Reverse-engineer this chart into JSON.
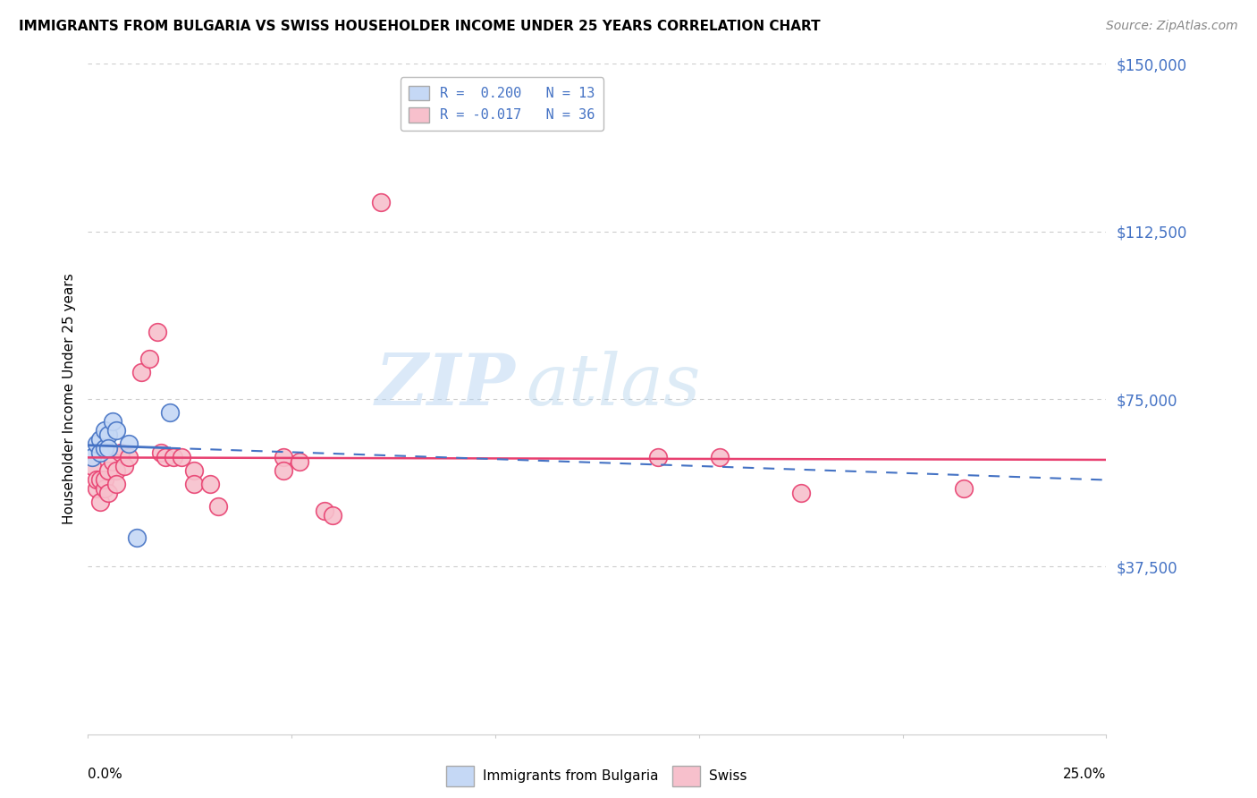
{
  "title": "IMMIGRANTS FROM BULGARIA VS SWISS HOUSEHOLDER INCOME UNDER 25 YEARS CORRELATION CHART",
  "source": "Source: ZipAtlas.com",
  "ylabel": "Householder Income Under 25 years",
  "xmin": 0.0,
  "xmax": 0.25,
  "ymin": 0,
  "ymax": 150000,
  "yticks": [
    37500,
    75000,
    112500,
    150000
  ],
  "ytick_labels": [
    "$37,500",
    "$75,000",
    "$112,500",
    "$150,000"
  ],
  "watermark_zip": "ZIP",
  "watermark_atlas": "atlas",
  "legend_r1": "R =  0.200",
  "legend_n1": "N = 13",
  "legend_r2": "R = -0.017",
  "legend_n2": "N = 36",
  "bulgaria_color": "#c5d8f5",
  "swiss_color": "#f7c0cc",
  "bulgaria_edge": "#4472c4",
  "swiss_edge": "#e84070",
  "bulgaria_line_color": "#4472c4",
  "swiss_line_color": "#e84070",
  "bg_color": "#ffffff",
  "grid_color": "#cccccc",
  "bulgaria_points": [
    [
      0.001,
      62000
    ],
    [
      0.002,
      65000
    ],
    [
      0.003,
      66000
    ],
    [
      0.003,
      63000
    ],
    [
      0.004,
      68000
    ],
    [
      0.004,
      64000
    ],
    [
      0.005,
      67000
    ],
    [
      0.005,
      64000
    ],
    [
      0.006,
      70000
    ],
    [
      0.007,
      68000
    ],
    [
      0.01,
      65000
    ],
    [
      0.012,
      44000
    ],
    [
      0.02,
      72000
    ]
  ],
  "swiss_points": [
    [
      0.001,
      60000
    ],
    [
      0.002,
      55000
    ],
    [
      0.002,
      57000
    ],
    [
      0.003,
      57000
    ],
    [
      0.003,
      52000
    ],
    [
      0.004,
      55000
    ],
    [
      0.004,
      57000
    ],
    [
      0.005,
      54000
    ],
    [
      0.005,
      59000
    ],
    [
      0.006,
      61000
    ],
    [
      0.007,
      59000
    ],
    [
      0.007,
      56000
    ],
    [
      0.008,
      63000
    ],
    [
      0.009,
      60000
    ],
    [
      0.01,
      62000
    ],
    [
      0.013,
      81000
    ],
    [
      0.015,
      84000
    ],
    [
      0.017,
      90000
    ],
    [
      0.018,
      63000
    ],
    [
      0.019,
      62000
    ],
    [
      0.021,
      62000
    ],
    [
      0.023,
      62000
    ],
    [
      0.026,
      59000
    ],
    [
      0.026,
      56000
    ],
    [
      0.03,
      56000
    ],
    [
      0.032,
      51000
    ],
    [
      0.048,
      62000
    ],
    [
      0.048,
      59000
    ],
    [
      0.052,
      61000
    ],
    [
      0.058,
      50000
    ],
    [
      0.06,
      49000
    ],
    [
      0.072,
      119000
    ],
    [
      0.14,
      62000
    ],
    [
      0.155,
      62000
    ],
    [
      0.175,
      54000
    ],
    [
      0.215,
      55000
    ]
  ],
  "bottom_label1": "Immigrants from Bulgaria",
  "bottom_label2": "Swiss"
}
